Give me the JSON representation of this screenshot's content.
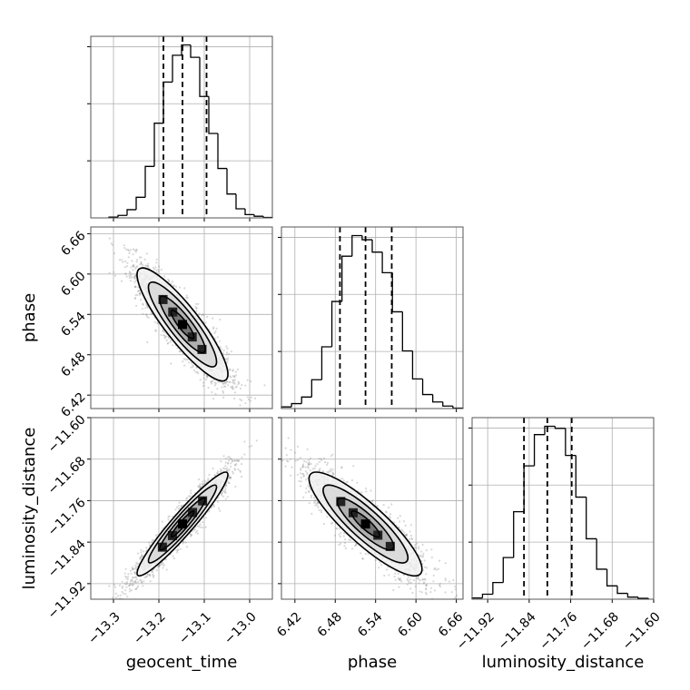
{
  "chart_data": {
    "type": "corner",
    "parameters": [
      {
        "name": "geocent_time",
        "range": [
          -13.35,
          -12.95
        ],
        "ticks": [
          "−13.3",
          "−13.2",
          "−13.1",
          "−13.0"
        ],
        "tick_values": [
          -13.3,
          -13.2,
          -13.1,
          -13.0
        ],
        "quantiles": [
          -13.19,
          -13.148,
          -13.095
        ],
        "histogram": {
          "bin_edges": [
            -13.31,
            -13.29,
            -13.27,
            -13.25,
            -13.23,
            -13.21,
            -13.19,
            -13.17,
            -13.15,
            -13.13,
            -13.11,
            -13.09,
            -13.07,
            -13.05,
            -13.03,
            -13.01,
            -12.99,
            -12.97,
            -12.95
          ],
          "counts": [
            2,
            6,
            20,
            50,
            125,
            230,
            330,
            395,
            420,
            390,
            295,
            205,
            120,
            58,
            22,
            8,
            4,
            1
          ]
        }
      },
      {
        "name": "phase",
        "range": [
          6.4,
          6.67
        ],
        "ticks": [
          "6.42",
          "6.48",
          "6.54",
          "6.60",
          "6.66"
        ],
        "tick_values": [
          6.42,
          6.48,
          6.54,
          6.6,
          6.66
        ],
        "quantiles": [
          6.487,
          6.525,
          6.564
        ],
        "histogram": {
          "bin_edges": [
            6.4,
            6.415,
            6.43,
            6.445,
            6.46,
            6.475,
            6.49,
            6.505,
            6.52,
            6.535,
            6.55,
            6.565,
            6.58,
            6.595,
            6.61,
            6.625,
            6.64,
            6.655,
            6.67
          ],
          "counts": [
            4,
            12,
            28,
            70,
            150,
            260,
            370,
            420,
            410,
            380,
            330,
            235,
            140,
            72,
            34,
            16,
            6,
            1
          ]
        }
      },
      {
        "name": "luminosity_distance",
        "range": [
          -11.95,
          -11.6
        ],
        "ticks": [
          "−11.92",
          "−11.84",
          "−11.76",
          "−11.68",
          "−11.60"
        ],
        "tick_values": [
          -11.92,
          -11.84,
          -11.76,
          -11.68,
          -11.6
        ],
        "quantiles": [
          -11.85,
          -11.805,
          -11.758
        ],
        "histogram": {
          "bin_edges": [
            -11.95,
            -11.93,
            -11.91,
            -11.89,
            -11.87,
            -11.85,
            -11.83,
            -11.81,
            -11.79,
            -11.77,
            -11.75,
            -11.73,
            -11.71,
            -11.69,
            -11.67,
            -11.65,
            -11.63,
            -11.61
          ],
          "counts": [
            3,
            12,
            40,
            100,
            210,
            320,
            395,
            415,
            410,
            345,
            245,
            145,
            72,
            32,
            14,
            5,
            2
          ]
        }
      }
    ],
    "pairs": [
      {
        "x_param": 0,
        "y_param": 1,
        "mean": [
          -13.148,
          6.525
        ],
        "sd": [
          0.05,
          0.042
        ],
        "corr": -0.88
      },
      {
        "x_param": 0,
        "y_param": 2,
        "mean": [
          -13.148,
          -11.805
        ],
        "sd": [
          0.05,
          0.05
        ],
        "corr": 0.95
      },
      {
        "x_param": 1,
        "y_param": 2,
        "mean": [
          6.525,
          -11.805
        ],
        "sd": [
          0.042,
          0.05
        ],
        "corr": -0.87
      }
    ],
    "contour_levels_sigma": [
      0.5,
      1.0,
      1.5,
      2.0
    ],
    "grid": true,
    "colors": {
      "lines": "#000000",
      "grid": "#b0b0b0",
      "samples": "#909090"
    }
  }
}
